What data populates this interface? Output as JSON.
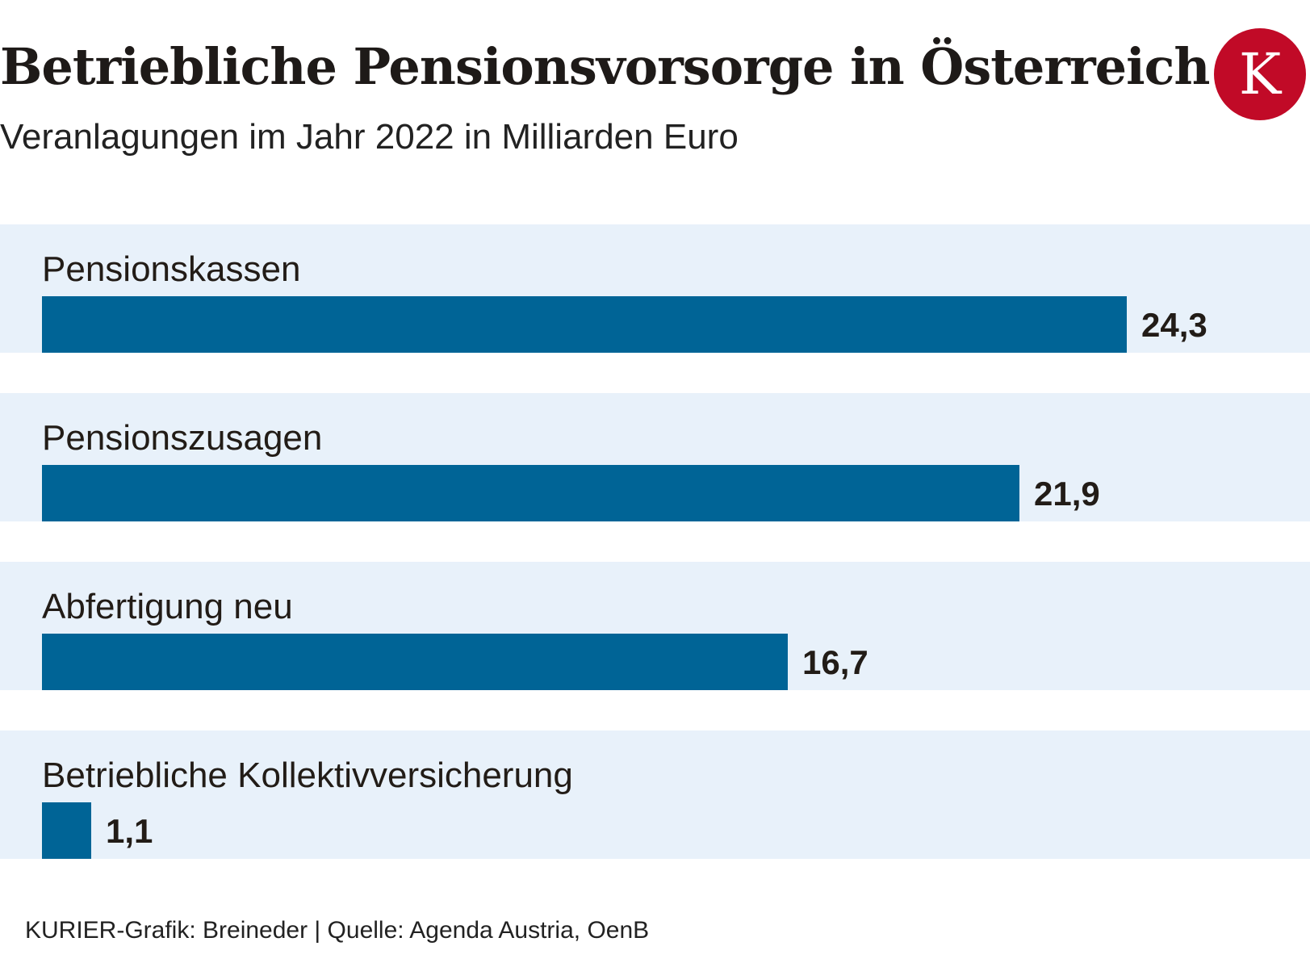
{
  "header": {
    "title": "Betriebliche Pensionsvorsorge in Österreich",
    "subtitle": "Veranlagungen im Jahr 2022 in Milliarden Euro"
  },
  "logo": {
    "letter": "K",
    "color": "#c10a27"
  },
  "chart_data": {
    "type": "bar",
    "orientation": "horizontal",
    "title": "Betriebliche Pensionsvorsorge in Österreich",
    "subtitle": "Veranlagungen im Jahr 2022 in Milliarden Euro",
    "categories": [
      "Pensionskassen",
      "Pensionszusagen",
      "Abfertigung neu",
      "Betriebliche Kollektivversicherung"
    ],
    "values": [
      24.3,
      21.9,
      16.7,
      1.1
    ],
    "value_labels": [
      "24,3",
      "21,9",
      "16,7",
      "1,1"
    ],
    "bar_color": "#006496",
    "row_background": "#e8f1fa",
    "grid": false,
    "legend": "none"
  },
  "footer": {
    "source": "KURIER-Grafik: Breineder | Quelle: Agenda Austria, OenB"
  }
}
